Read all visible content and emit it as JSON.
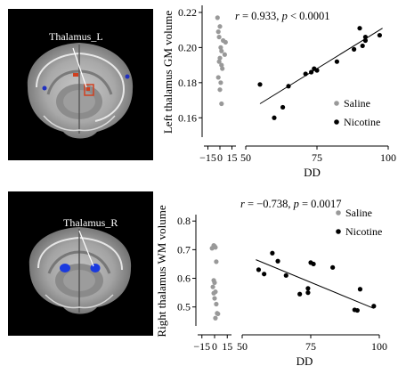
{
  "panels": [
    {
      "brain": {
        "region_label": "Thalamus_L",
        "label_color": "#ffffff",
        "highlight_color": "#d04020",
        "marker_color": "#2030c0"
      },
      "chart": {
        "stat_prefix": "r",
        "stat_text": " = 0.933, ",
        "p_prefix": "p",
        "p_text": " < 0.0001"
      }
    },
    {
      "brain": {
        "region_label": "Thalamus_R",
        "label_color": "#ffffff",
        "highlight_color": "#1a3adf",
        "marker_color": "#1a3adf"
      },
      "chart": {
        "stat_prefix": "r",
        "stat_text": " = −0.738, ",
        "p_prefix": "p",
        "p_text": " = 0.0017"
      }
    }
  ],
  "chart_data": [
    {
      "type": "scatter",
      "title": "",
      "xlabel": "DD",
      "ylabel": "Left thalamus GM volume",
      "ylim": [
        0.15,
        0.222
      ],
      "yticks": [
        0.16,
        0.18,
        0.2,
        0.22
      ],
      "ytick_labels": [
        "0.16",
        "0.18",
        "0.20",
        "0.22"
      ],
      "xaxis_break": true,
      "xlim_left": [
        -20,
        20
      ],
      "xticks_left": [
        -15,
        0,
        15
      ],
      "xtick_labels_left": [
        "−15",
        "0",
        "15"
      ],
      "xlim_right": [
        50,
        100
      ],
      "xticks_right": [
        50,
        75,
        100
      ],
      "xtick_labels_right": [
        "50",
        "75",
        "100"
      ],
      "legend": {
        "placement": "top-right",
        "entries": [
          "Saline",
          "Nicotine"
        ]
      },
      "series": [
        {
          "name": "Saline",
          "color": "#999999",
          "points": [
            [
              -3,
              0.217
            ],
            [
              0,
              0.212
            ],
            [
              -2,
              0.209
            ],
            [
              -1,
              0.206
            ],
            [
              4,
              0.204
            ],
            [
              7,
              0.203
            ],
            [
              1,
              0.2
            ],
            [
              2,
              0.198
            ],
            [
              6,
              0.196
            ],
            [
              0,
              0.194
            ],
            [
              -1,
              0.192
            ],
            [
              2,
              0.19
            ],
            [
              3,
              0.188
            ],
            [
              -2,
              0.183
            ],
            [
              1,
              0.18
            ],
            [
              0,
              0.176
            ],
            [
              2,
              0.168
            ]
          ]
        },
        {
          "name": "Nicotine",
          "color": "#000000",
          "points": [
            [
              55,
              0.179
            ],
            [
              60,
              0.16
            ],
            [
              63,
              0.166
            ],
            [
              65,
              0.178
            ],
            [
              71,
              0.185
            ],
            [
              73,
              0.186
            ],
            [
              74,
              0.188
            ],
            [
              75,
              0.187
            ],
            [
              82,
              0.192
            ],
            [
              88,
              0.199
            ],
            [
              90,
              0.211
            ],
            [
              91,
              0.201
            ],
            [
              92,
              0.204
            ],
            [
              92,
              0.206
            ],
            [
              97,
              0.207
            ]
          ]
        }
      ],
      "fit_line": {
        "x": [
          55,
          98
        ],
        "y": [
          0.168,
          0.211
        ]
      }
    },
    {
      "type": "scatter",
      "title": "",
      "xlabel": "DD",
      "ylabel": "Right thalamus WM volume",
      "ylim": [
        0.44,
        0.81
      ],
      "yticks": [
        0.5,
        0.6,
        0.7,
        0.8
      ],
      "ytick_labels": [
        "0.5",
        "0.6",
        "0.7",
        "0.8"
      ],
      "xaxis_break": true,
      "xlim_left": [
        -20,
        20
      ],
      "xticks_left": [
        -15,
        0,
        15
      ],
      "xtick_labels_left": [
        "−15",
        "0",
        "15"
      ],
      "xlim_right": [
        50,
        100
      ],
      "xticks_right": [
        50,
        75,
        100
      ],
      "xtick_labels_right": [
        "50",
        "75",
        "100"
      ],
      "legend": {
        "placement": "top-right",
        "entries": [
          "Saline",
          "Nicotine"
        ]
      },
      "series": [
        {
          "name": "Saline",
          "color": "#999999",
          "points": [
            [
              -1,
              0.715
            ],
            [
              0,
              0.712
            ],
            [
              1,
              0.708
            ],
            [
              -3,
              0.705
            ],
            [
              2,
              0.658
            ],
            [
              -1,
              0.593
            ],
            [
              0,
              0.585
            ],
            [
              -2,
              0.57
            ],
            [
              1,
              0.553
            ],
            [
              -1,
              0.548
            ],
            [
              0,
              0.53
            ],
            [
              2,
              0.51
            ],
            [
              3,
              0.478
            ],
            [
              4,
              0.476
            ],
            [
              1,
              0.461
            ]
          ]
        },
        {
          "name": "Nicotine",
          "color": "#000000",
          "points": [
            [
              56,
              0.63
            ],
            [
              58,
              0.615
            ],
            [
              61,
              0.688
            ],
            [
              63,
              0.66
            ],
            [
              66,
              0.61
            ],
            [
              71,
              0.545
            ],
            [
              74,
              0.55
            ],
            [
              74,
              0.565
            ],
            [
              75,
              0.655
            ],
            [
              76,
              0.65
            ],
            [
              83,
              0.638
            ],
            [
              91,
              0.49
            ],
            [
              92,
              0.488
            ],
            [
              93,
              0.562
            ],
            [
              98,
              0.503
            ]
          ]
        }
      ],
      "fit_line": {
        "x": [
          55,
          98
        ],
        "y": [
          0.665,
          0.495
        ]
      }
    }
  ]
}
